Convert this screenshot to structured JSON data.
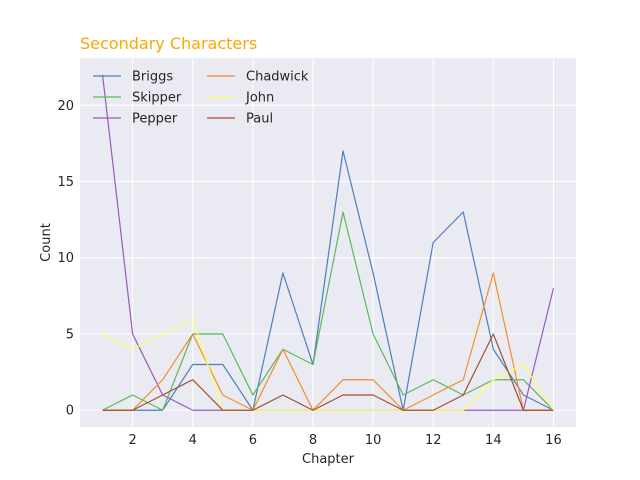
{
  "chart_data": {
    "type": "line",
    "title": "Secondary Characters",
    "title_color": "#FFA500",
    "xlabel": "Chapter",
    "ylabel": "Count",
    "x": [
      1,
      2,
      3,
      4,
      5,
      6,
      7,
      8,
      9,
      10,
      11,
      12,
      13,
      14,
      15,
      16
    ],
    "xlim": [
      0.25,
      16.75
    ],
    "ylim": [
      -1.1,
      23.1
    ],
    "xticks": [
      2,
      4,
      6,
      8,
      10,
      12,
      14,
      16
    ],
    "yticks": [
      0,
      5,
      10,
      15,
      20
    ],
    "grid": true,
    "background": "#EAEAF2",
    "legend_position": "top-left",
    "series": [
      {
        "name": "Briggs",
        "color": "#4C7EBF",
        "values": [
          0,
          0,
          0,
          3,
          3,
          0,
          9,
          3,
          17,
          9,
          0,
          11,
          13,
          4,
          1,
          0
        ]
      },
      {
        "name": "Skipper",
        "color": "#5DB85C",
        "values": [
          0,
          1,
          0,
          5,
          5,
          1,
          4,
          3,
          13,
          5,
          1,
          2,
          1,
          2,
          2,
          0
        ]
      },
      {
        "name": "Pepper",
        "color": "#9B59B6",
        "values": [
          22,
          5,
          1,
          0,
          0,
          0,
          0,
          0,
          0,
          0,
          0,
          0,
          0,
          0,
          0,
          8
        ]
      },
      {
        "name": "Chadwick",
        "color": "#F28E2B",
        "values": [
          0,
          0,
          2,
          5,
          1,
          0,
          4,
          0,
          2,
          2,
          0,
          1,
          2,
          9,
          0,
          0
        ]
      },
      {
        "name": "John",
        "color": "#FFFF66",
        "values": [
          5,
          4,
          5,
          6,
          0,
          0,
          0,
          0,
          0,
          0,
          0,
          0,
          0,
          2,
          3,
          0
        ]
      },
      {
        "name": "Paul",
        "color": "#A0522D",
        "values": [
          0,
          0,
          1,
          2,
          0,
          0,
          1,
          0,
          1,
          1,
          0,
          0,
          1,
          5,
          0,
          0
        ]
      }
    ]
  }
}
